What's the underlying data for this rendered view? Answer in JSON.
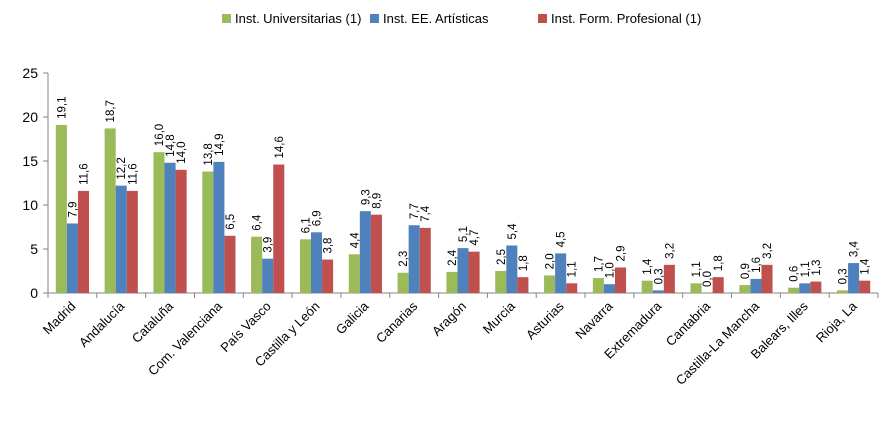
{
  "chart_data": {
    "type": "bar",
    "categories": [
      "Madrid",
      "Andalucía",
      "Cataluña",
      "Com. Valenciana",
      "País Vasco",
      "Castilla y León",
      "Galicia",
      "Canarias",
      "Aragón",
      "Murcia",
      "Asturias",
      "Navarra",
      "Extremadura",
      "Cantabria",
      "Castilla-La Mancha",
      "Balears, Illes",
      "Rioja, La"
    ],
    "series": [
      {
        "name": "Inst. Universitarias (1)",
        "color": "#9bbb59",
        "values": [
          19.1,
          18.7,
          16.0,
          13.8,
          6.4,
          6.1,
          4.4,
          2.3,
          2.4,
          2.5,
          2.0,
          1.7,
          1.4,
          1.1,
          0.9,
          0.6,
          0.3
        ],
        "value_labels": [
          "19,1",
          "18,7",
          "16,0",
          "13,8",
          "6,4",
          "6,1",
          "4,4",
          "2,3",
          "2,4",
          "2,5",
          "2,0",
          "1,7",
          "1,4",
          "1,1",
          "0,9",
          "0,6",
          "0,3"
        ]
      },
      {
        "name": "Inst. EE. Artísticas",
        "color": "#4f81bd",
        "values": [
          7.9,
          12.2,
          14.8,
          14.9,
          3.9,
          6.9,
          9.3,
          7.7,
          5.1,
          5.4,
          4.5,
          1.0,
          0.3,
          0.0,
          1.6,
          1.1,
          3.4
        ],
        "value_labels": [
          "7,9",
          "12,2",
          "14,8",
          "14,9",
          "3,9",
          "6,9",
          "9,3",
          "7,7",
          "5,1",
          "5,4",
          "4,5",
          "1,0",
          "0,3",
          "0,0",
          "1,6",
          "1,1",
          "3,4"
        ]
      },
      {
        "name": "Inst. Form. Profesional (1)",
        "color": "#c0504d",
        "values": [
          11.6,
          11.6,
          14.0,
          6.5,
          14.6,
          3.8,
          8.9,
          7.4,
          4.7,
          1.8,
          1.1,
          2.9,
          3.2,
          1.8,
          3.2,
          1.3,
          1.4
        ],
        "value_labels": [
          "11,6",
          "11,6",
          "14,0",
          "6,5",
          "14,6",
          "3,8",
          "8,9",
          "7,4",
          "4,7",
          "1,8",
          "1,1",
          "2,9",
          "3,2",
          "1,8",
          "3,2",
          "1,3",
          "1,4"
        ]
      }
    ],
    "ylim": [
      0,
      25
    ],
    "yticks": [
      0,
      5,
      10,
      15,
      20,
      25
    ],
    "legend": "top"
  }
}
